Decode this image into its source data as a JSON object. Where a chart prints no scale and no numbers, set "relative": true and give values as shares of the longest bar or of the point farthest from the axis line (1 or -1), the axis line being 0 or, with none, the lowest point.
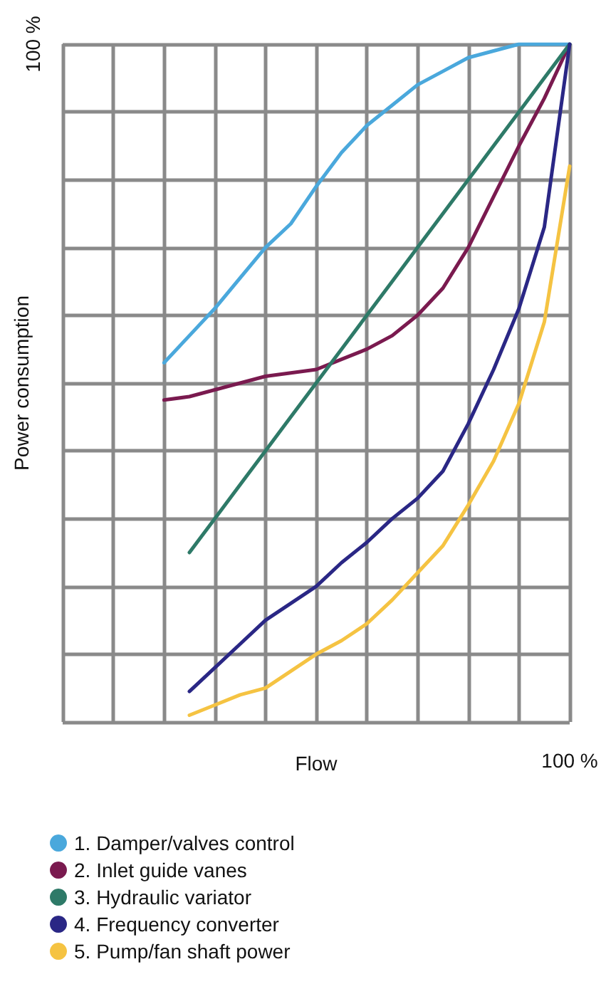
{
  "chart_data": {
    "type": "line",
    "xlabel": "Flow",
    "ylabel": "Power consumption",
    "relative": true,
    "annotations": [
      "100 %",
      "100 %"
    ],
    "categories": [
      null,
      null,
      null,
      null,
      null,
      null,
      null,
      null,
      null,
      null,
      null,
      null,
      null,
      null,
      null,
      null,
      null,
      null,
      null,
      null,
      null
    ],
    "grid": true,
    "legend": "bottom left",
    "marker": "none",
    "line_style": "solid",
    "series": [
      {
        "name": "1. Damper/valves control",
        "color": "#4aa8dc",
        "values": [
          null,
          null,
          null,
          null,
          0.53,
          0.57,
          0.61,
          0.655,
          0.7,
          0.735,
          0.79,
          0.84,
          0.88,
          0.91,
          0.94,
          0.96,
          0.98,
          0.99,
          1,
          1,
          1
        ]
      },
      {
        "name": "2. Inlet guide vanes",
        "color": "#7a1a4f",
        "values": [
          null,
          null,
          null,
          null,
          0.475,
          0.48,
          0.49,
          0.5,
          0.51,
          0.515,
          0.52,
          0.535,
          0.55,
          0.57,
          0.6,
          0.64,
          0.7,
          0.775,
          0.85,
          0.92,
          1
        ]
      },
      {
        "name": "3. Hydraulic variator",
        "color": "#2e7a68",
        "values": [
          null,
          null,
          null,
          null,
          null,
          0.25,
          0.3,
          0.35,
          0.4,
          0.45,
          0.5,
          0.55,
          0.6,
          0.65,
          0.7,
          0.75,
          0.8,
          0.85,
          0.9,
          0.95,
          1
        ]
      },
      {
        "name": "4. Frequency converter",
        "color": "#2a2785",
        "values": [
          null,
          null,
          null,
          null,
          null,
          0.045,
          0.08,
          0.115,
          0.15,
          0.175,
          0.2,
          0.235,
          0.265,
          0.3,
          0.33,
          0.37,
          0.44,
          0.52,
          0.61,
          0.73,
          1
        ]
      },
      {
        "name": "5. Pump/fan shaft power",
        "color": "#f5c342",
        "values": [
          null,
          null,
          null,
          null,
          null,
          0.01,
          0.025,
          0.04,
          0.05,
          0.075,
          0.1,
          0.12,
          0.145,
          0.18,
          0.22,
          0.26,
          0.32,
          0.385,
          0.47,
          0.59,
          0.82
        ]
      }
    ]
  }
}
